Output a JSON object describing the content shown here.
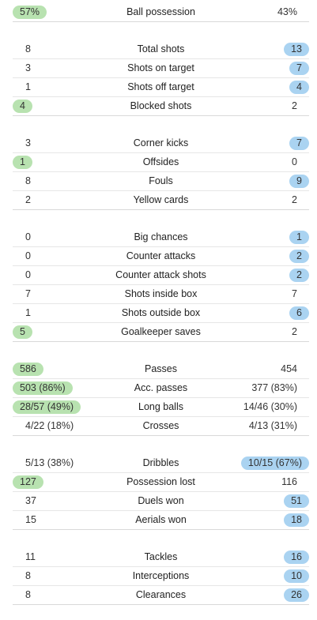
{
  "groups": [
    {
      "rows": [
        {
          "label": "Ball possession",
          "home": "57%",
          "away": "43%",
          "hi": "home"
        }
      ]
    },
    {
      "rows": [
        {
          "label": "Total shots",
          "home": "8",
          "away": "13",
          "hi": "away"
        },
        {
          "label": "Shots on target",
          "home": "3",
          "away": "7",
          "hi": "away"
        },
        {
          "label": "Shots off target",
          "home": "1",
          "away": "4",
          "hi": "away"
        },
        {
          "label": "Blocked shots",
          "home": "4",
          "away": "2",
          "hi": "home"
        }
      ]
    },
    {
      "rows": [
        {
          "label": "Corner kicks",
          "home": "3",
          "away": "7",
          "hi": "away"
        },
        {
          "label": "Offsides",
          "home": "1",
          "away": "0",
          "hi": "home"
        },
        {
          "label": "Fouls",
          "home": "8",
          "away": "9",
          "hi": "away"
        },
        {
          "label": "Yellow cards",
          "home": "2",
          "away": "2",
          "hi": "none"
        }
      ]
    },
    {
      "rows": [
        {
          "label": "Big chances",
          "home": "0",
          "away": "1",
          "hi": "away"
        },
        {
          "label": "Counter attacks",
          "home": "0",
          "away": "2",
          "hi": "away"
        },
        {
          "label": "Counter attack shots",
          "home": "0",
          "away": "2",
          "hi": "away"
        },
        {
          "label": "Shots inside box",
          "home": "7",
          "away": "7",
          "hi": "none"
        },
        {
          "label": "Shots outside box",
          "home": "1",
          "away": "6",
          "hi": "away"
        },
        {
          "label": "Goalkeeper saves",
          "home": "5",
          "away": "2",
          "hi": "home"
        }
      ]
    },
    {
      "rows": [
        {
          "label": "Passes",
          "home": "586",
          "away": "454",
          "hi": "home"
        },
        {
          "label": "Acc. passes",
          "home": "503 (86%)",
          "away": "377 (83%)",
          "hi": "home"
        },
        {
          "label": "Long balls",
          "home": "28/57 (49%)",
          "away": "14/46 (30%)",
          "hi": "home"
        },
        {
          "label": "Crosses",
          "home": "4/22 (18%)",
          "away": "4/13 (31%)",
          "hi": "none"
        }
      ]
    },
    {
      "rows": [
        {
          "label": "Dribbles",
          "home": "5/13 (38%)",
          "away": "10/15 (67%)",
          "hi": "away"
        },
        {
          "label": "Possession lost",
          "home": "127",
          "away": "116",
          "hi": "home"
        },
        {
          "label": "Duels won",
          "home": "37",
          "away": "51",
          "hi": "away"
        },
        {
          "label": "Aerials won",
          "home": "15",
          "away": "18",
          "hi": "away"
        }
      ]
    },
    {
      "rows": [
        {
          "label": "Tackles",
          "home": "11",
          "away": "16",
          "hi": "away"
        },
        {
          "label": "Interceptions",
          "home": "8",
          "away": "10",
          "hi": "away"
        },
        {
          "label": "Clearances",
          "home": "8",
          "away": "26",
          "hi": "away"
        }
      ]
    }
  ],
  "colors": {
    "home_highlight": "#b8e2b0",
    "away_highlight": "#aad3f1"
  }
}
